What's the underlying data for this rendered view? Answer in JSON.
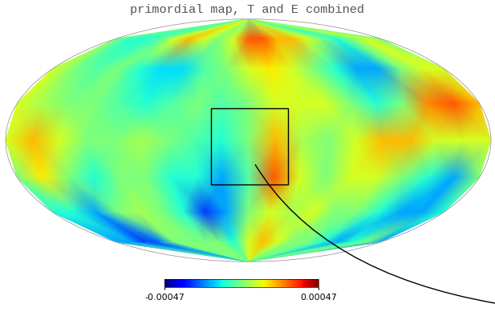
{
  "chart_data": {
    "type": "map",
    "title": "primordial map, T and E combined",
    "cells": [
      [
        0,
        0,
        0,
        5e-05,
        5e-05,
        0.0001,
        0.0001,
        5e-05,
        0,
        0,
        0,
        5e-05,
        5e-05,
        0,
        0,
        -5e-05,
        0,
        0,
        0
      ],
      [
        0,
        -0.0001,
        -0.0001,
        -5e-05,
        0.0001,
        0.0002,
        0.0001,
        0,
        0.0001,
        0.0003,
        0.0003,
        0.0002,
        0.0002,
        0.0001,
        0,
        -0.0001,
        0,
        0.0001,
        0
      ],
      [
        0.0001,
        0,
        -5e-05,
        0,
        -0.0001,
        -0.00015,
        -0.00015,
        -5e-05,
        0,
        0.0001,
        0.00015,
        0.0001,
        0,
        -0.0001,
        -0.0002,
        -0.0002,
        0,
        0.0001,
        0.0001
      ],
      [
        0.0001,
        5e-05,
        0,
        0,
        -5e-05,
        -0.0001,
        -5e-05,
        0,
        -5e-05,
        0,
        0.0001,
        0.0001,
        0.0001,
        0,
        -0.0001,
        0,
        0.00025,
        0.0003,
        0.0002
      ],
      [
        0.0001,
        0.0002,
        0.0001,
        0,
        0,
        5e-05,
        0,
        -5e-05,
        -0.0001,
        0,
        0.0002,
        5e-05,
        0,
        0.0001,
        0.0002,
        0.0002,
        0.0001,
        0.0001,
        0.0001
      ],
      [
        0,
        0.00015,
        0,
        -0.0001,
        0,
        0,
        -0.0001,
        -0.0001,
        -0.0002,
        -5e-05,
        0.0003,
        0.0001,
        0,
        0.0001,
        0.0001,
        0,
        -0.0001,
        -0.0002,
        0
      ],
      [
        -0.0001,
        -0.0001,
        -0.0002,
        0,
        5e-05,
        0,
        -0.0001,
        -0.0003,
        -0.0002,
        0,
        0.0001,
        5e-05,
        0.0001,
        0,
        0,
        -0.0001,
        -0.0002,
        -0.0002,
        -0.0001
      ],
      [
        -0.0002,
        -0.0002,
        -0.0003,
        -0.00025,
        0,
        0,
        0,
        0,
        -0.0001,
        0.0001,
        0.0002,
        0.0001,
        0,
        0,
        -0.0001,
        -0.0002,
        -0.0001,
        0,
        -0.0002
      ],
      [
        0,
        0,
        -0.0001,
        -0.0001,
        0,
        0,
        0,
        0,
        0,
        0.0001,
        0.0001,
        0,
        0,
        0,
        0,
        0,
        0,
        0,
        0
      ]
    ],
    "colorbar_range": [
      -0.00047,
      0.00047
    ],
    "colorbar_ticks": [
      -0.00047,
      0.00047
    ]
  }
}
